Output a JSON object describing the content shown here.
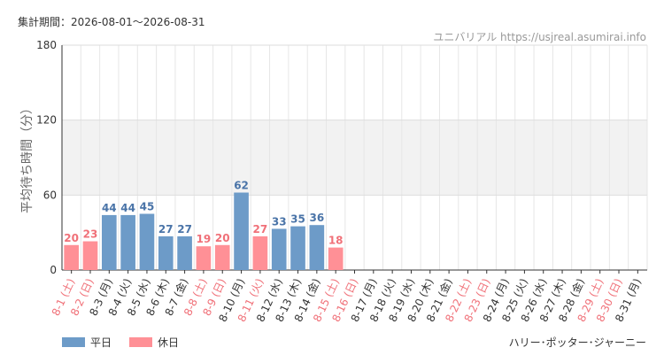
{
  "header": {
    "period": "集計期間：2026-08-01〜2026-08-31",
    "credit": "ユニバリアル https://usjreal.asumirai.info"
  },
  "legend": {
    "weekday_label": "平日",
    "holiday_label": "休日"
  },
  "attraction": "ハリー･ポッター･ジャーニー",
  "colors": {
    "weekday_bar": "#6d9bc8",
    "holiday_bar": "#ff9096",
    "weekday_text": "#4a74a8",
    "holiday_text": "#f07078",
    "weekend_label": "#f07078",
    "weekday_label": "#333333"
  },
  "chart_data": {
    "type": "bar",
    "ylabel": "平均待ち時間（分）",
    "ylim": [
      0,
      180
    ],
    "yticks": [
      0,
      60,
      120,
      180
    ],
    "grid": true,
    "shaded_band": [
      60,
      120
    ],
    "categories": [
      "8-1 (土)",
      "8-2 (日)",
      "8-3 (月)",
      "8-4 (火)",
      "8-5 (水)",
      "8-6 (木)",
      "8-7 (金)",
      "8-8 (土)",
      "8-9 (日)",
      "8-10 (月)",
      "8-11 (火)",
      "8-12 (水)",
      "8-13 (木)",
      "8-14 (金)",
      "8-15 (土)",
      "8-16 (日)",
      "8-17 (月)",
      "8-18 (火)",
      "8-19 (水)",
      "8-20 (木)",
      "8-21 (金)",
      "8-22 (土)",
      "8-23 (日)",
      "8-24 (月)",
      "8-25 (火)",
      "8-26 (水)",
      "8-27 (木)",
      "8-28 (金)",
      "8-29 (土)",
      "8-30 (日)",
      "8-31 (月)"
    ],
    "holiday": [
      true,
      true,
      false,
      false,
      false,
      false,
      false,
      true,
      true,
      false,
      true,
      false,
      false,
      false,
      true,
      true,
      false,
      false,
      false,
      false,
      false,
      true,
      true,
      false,
      false,
      false,
      false,
      false,
      true,
      true,
      false
    ],
    "values": [
      20,
      23,
      44,
      44,
      45,
      27,
      27,
      19,
      20,
      62,
      27,
      33,
      35,
      36,
      18,
      null,
      null,
      null,
      null,
      null,
      null,
      null,
      null,
      null,
      null,
      null,
      null,
      null,
      null,
      null,
      null
    ]
  }
}
